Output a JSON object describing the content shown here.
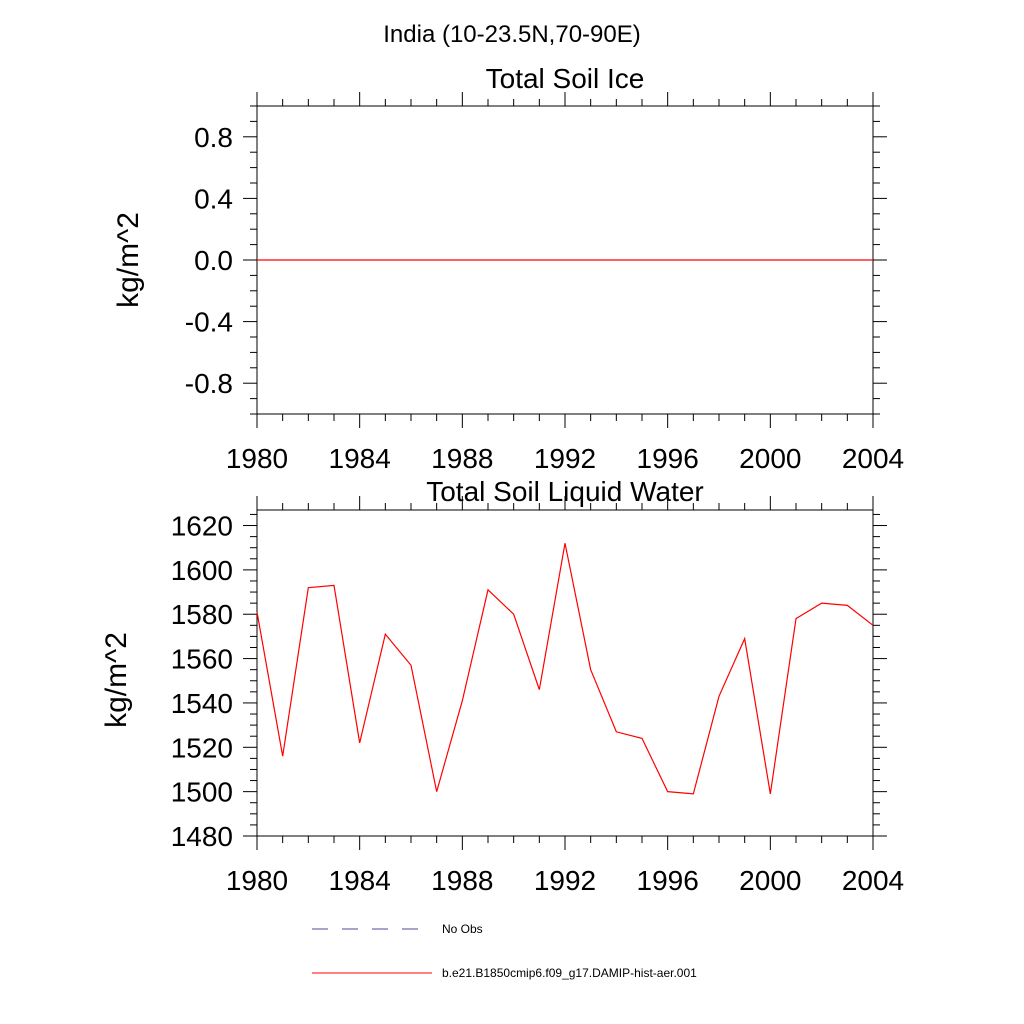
{
  "header": {
    "region_title": "India (10-23.5N,70-90E)"
  },
  "chart_data": [
    {
      "type": "line",
      "title": "Total Soil Ice",
      "xlabel": "",
      "ylabel": "kg/m^2",
      "xlim": [
        1980,
        2004
      ],
      "ylim": [
        -1.0,
        1.0
      ],
      "x_ticks": [
        1980,
        1984,
        1988,
        1992,
        1996,
        2000,
        2004
      ],
      "x_tick_labels": [
        "1980",
        "1984",
        "1988",
        "1992",
        "1996",
        "2000",
        "2004"
      ],
      "y_ticks": [
        -0.8,
        -0.4,
        0.0,
        0.4,
        0.8
      ],
      "y_tick_labels": [
        "-0.8",
        "-0.4",
        "0.0",
        "0.4",
        "0.8"
      ],
      "grid": false,
      "series": [
        {
          "name": "b.e21.B1850cmip6.f09_g17.DAMIP-hist-aer.001",
          "color": "#ff0000",
          "x": [
            1980,
            1981,
            1982,
            1983,
            1984,
            1985,
            1986,
            1987,
            1988,
            1989,
            1990,
            1991,
            1992,
            1993,
            1994,
            1995,
            1996,
            1997,
            1998,
            1999,
            2000,
            2001,
            2002,
            2003,
            2004
          ],
          "y": [
            0,
            0,
            0,
            0,
            0,
            0,
            0,
            0,
            0,
            0,
            0,
            0,
            0,
            0,
            0,
            0,
            0,
            0,
            0,
            0,
            0,
            0,
            0,
            0,
            0
          ]
        }
      ]
    },
    {
      "type": "line",
      "title": "Total Soil Liquid Water",
      "xlabel": "",
      "ylabel": "kg/m^2",
      "xlim": [
        1980,
        2004
      ],
      "ylim": [
        1480,
        1627
      ],
      "x_ticks": [
        1980,
        1984,
        1988,
        1992,
        1996,
        2000,
        2004
      ],
      "x_tick_labels": [
        "1980",
        "1984",
        "1988",
        "1992",
        "1996",
        "2000",
        "2004"
      ],
      "y_ticks": [
        1480,
        1500,
        1520,
        1540,
        1560,
        1580,
        1600,
        1620
      ],
      "y_tick_labels": [
        "1480",
        "1500",
        "1520",
        "1540",
        "1560",
        "1580",
        "1600",
        "1620"
      ],
      "grid": false,
      "series": [
        {
          "name": "b.e21.B1850cmip6.f09_g17.DAMIP-hist-aer.001",
          "color": "#ff0000",
          "x": [
            1980,
            1981,
            1982,
            1983,
            1984,
            1985,
            1986,
            1987,
            1988,
            1989,
            1990,
            1991,
            1992,
            1993,
            1994,
            1995,
            1996,
            1997,
            1998,
            1999,
            2000,
            2001,
            2002,
            2003,
            2004
          ],
          "y": [
            1581,
            1516,
            1592,
            1593,
            1522,
            1571,
            1557,
            1500,
            1541,
            1591,
            1580,
            1546,
            1612,
            1555,
            1527,
            1524,
            1500,
            1499,
            1543,
            1569,
            1499,
            1578,
            1585,
            1584,
            1575
          ]
        }
      ]
    }
  ],
  "legend": {
    "placement": "bottom",
    "items": [
      {
        "label": "No Obs",
        "color": "#4a4a9a",
        "style": "dashed"
      },
      {
        "label": "b.e21.B1850cmip6.f09_g17.DAMIP-hist-aer.001",
        "color": "#ff0000",
        "style": "solid"
      }
    ]
  }
}
